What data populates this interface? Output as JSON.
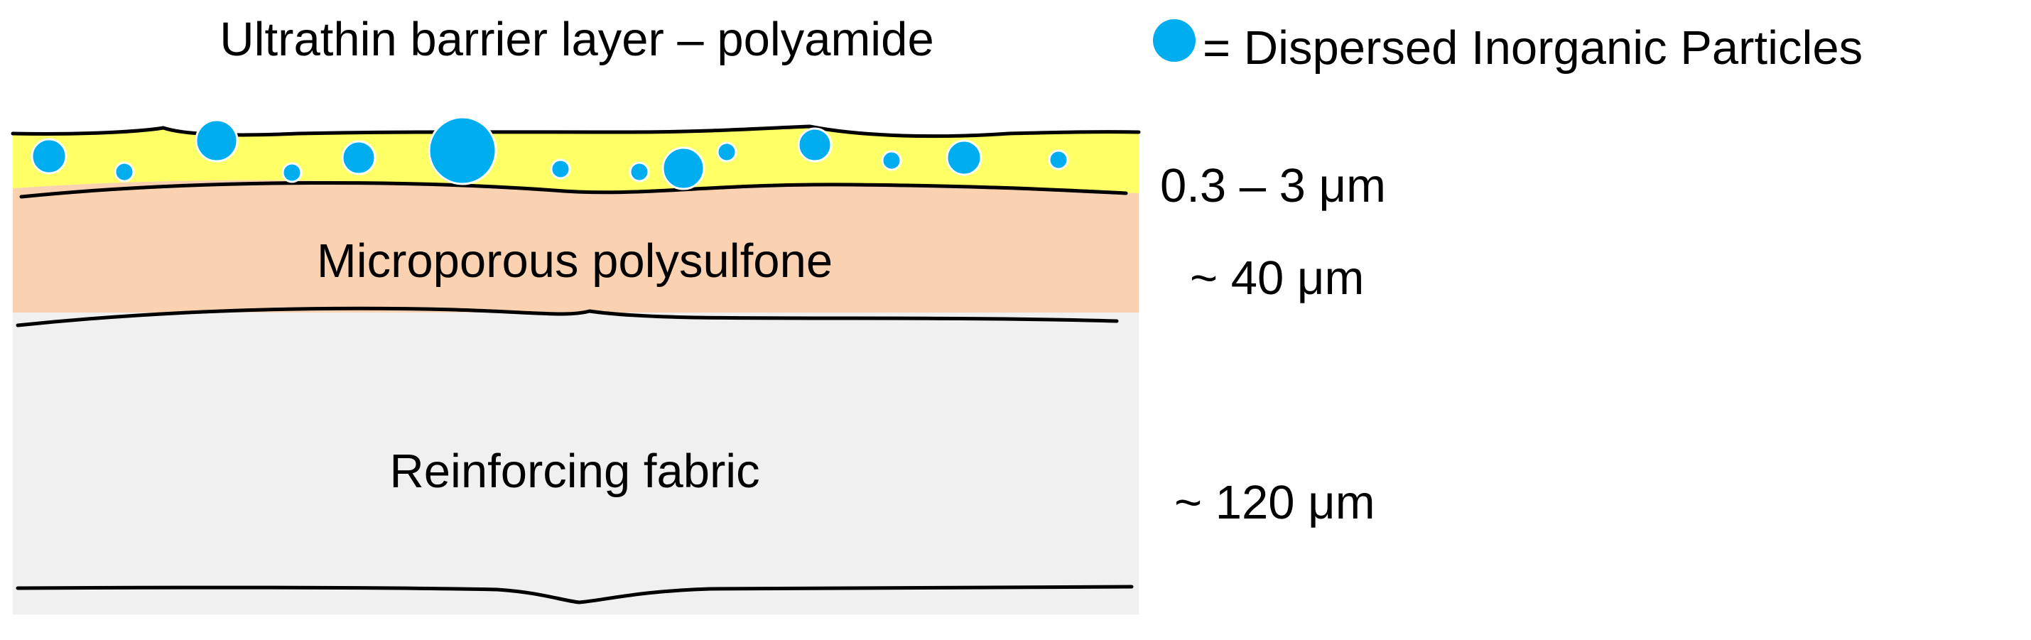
{
  "title": "Ultrathin barrier layer – polyamide",
  "legend": {
    "text": "= Dispersed Inorganic Particles",
    "marker_color": "#00adef"
  },
  "layers": [
    {
      "id": "barrier",
      "thickness": "0.3 – 3 μm",
      "color": "#ffff66"
    },
    {
      "id": "polysulfone",
      "label": "Microporous polysulfone",
      "thickness": "~ 40 μm",
      "color": "#fad2b1"
    },
    {
      "id": "fabric",
      "label": "Reinforcing fabric",
      "thickness": "~ 120 μm",
      "color": "#f0f0f0"
    }
  ]
}
